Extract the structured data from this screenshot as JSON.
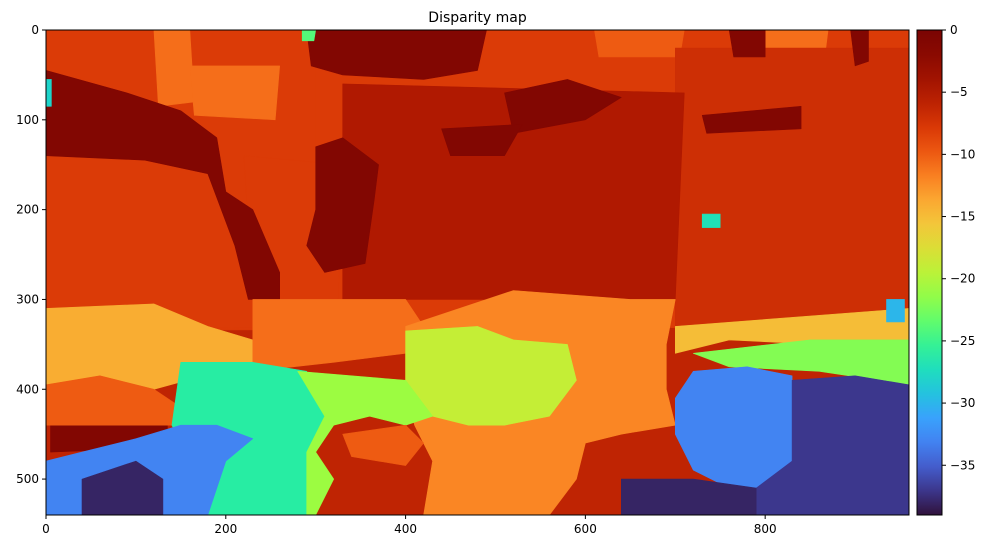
{
  "chart_data": {
    "type": "heatmap",
    "title": "Disparity map",
    "xlabel": "",
    "ylabel": "",
    "x_ticks": [
      0,
      200,
      400,
      600,
      800
    ],
    "y_ticks": [
      0,
      100,
      200,
      300,
      400,
      500
    ],
    "xlim": [
      0,
      960
    ],
    "ylim": [
      540,
      0
    ],
    "colormap": "turbo",
    "colorbar": {
      "range": [
        -39,
        0
      ],
      "ticks": [
        0,
        -5,
        -10,
        -15,
        -20,
        -25,
        -30,
        -35
      ]
    },
    "regions": [
      {
        "name": "background",
        "value": -6,
        "points": [
          [
            0,
            0
          ],
          [
            960,
            0
          ],
          [
            960,
            540
          ],
          [
            0,
            540
          ]
        ]
      },
      {
        "name": "upper-band",
        "value": -8,
        "points": [
          [
            0,
            0
          ],
          [
            960,
            0
          ],
          [
            960,
            330
          ],
          [
            0,
            335
          ]
        ]
      },
      {
        "name": "upper-left-block",
        "value": -8,
        "points": [
          [
            0,
            0
          ],
          [
            300,
            0
          ],
          [
            300,
            330
          ],
          [
            0,
            335
          ]
        ]
      },
      {
        "name": "light-orange-top-a",
        "value": -11,
        "points": [
          [
            120,
            0
          ],
          [
            160,
            0
          ],
          [
            165,
            80
          ],
          [
            125,
            85
          ]
        ]
      },
      {
        "name": "light-orange-top-b",
        "value": -11,
        "points": [
          [
            160,
            40
          ],
          [
            260,
            40
          ],
          [
            255,
            100
          ],
          [
            165,
            95
          ]
        ]
      },
      {
        "name": "light-orange-top-c",
        "value": -10,
        "points": [
          [
            610,
            0
          ],
          [
            710,
            0
          ],
          [
            705,
            30
          ],
          [
            615,
            30
          ]
        ]
      },
      {
        "name": "light-orange-top-d",
        "value": -11,
        "points": [
          [
            770,
            0
          ],
          [
            870,
            0
          ],
          [
            865,
            40
          ],
          [
            775,
            40
          ]
        ]
      },
      {
        "name": "right-upper",
        "value": -7,
        "points": [
          [
            700,
            20
          ],
          [
            960,
            20
          ],
          [
            960,
            330
          ],
          [
            700,
            330
          ]
        ]
      },
      {
        "name": "central-dark-orange",
        "value": -5,
        "points": [
          [
            330,
            60
          ],
          [
            710,
            70
          ],
          [
            700,
            300
          ],
          [
            330,
            300
          ]
        ]
      },
      {
        "name": "mid-orange-left-vert",
        "value": -8,
        "points": [
          [
            220,
            140
          ],
          [
            330,
            150
          ],
          [
            325,
            300
          ],
          [
            230,
            300
          ]
        ]
      },
      {
        "name": "maroon-top-left",
        "value": -1,
        "points": [
          [
            0,
            45
          ],
          [
            90,
            70
          ],
          [
            150,
            90
          ],
          [
            190,
            120
          ],
          [
            200,
            180
          ],
          [
            230,
            200
          ],
          [
            260,
            270
          ],
          [
            260,
            300
          ],
          [
            225,
            300
          ],
          [
            210,
            240
          ],
          [
            180,
            160
          ],
          [
            110,
            145
          ],
          [
            0,
            140
          ]
        ]
      },
      {
        "name": "maroon-top-centre",
        "value": -1,
        "points": [
          [
            290,
            0
          ],
          [
            490,
            0
          ],
          [
            480,
            45
          ],
          [
            420,
            55
          ],
          [
            330,
            50
          ],
          [
            295,
            40
          ]
        ]
      },
      {
        "name": "maroon-centre-body",
        "value": -1,
        "points": [
          [
            300,
            130
          ],
          [
            330,
            120
          ],
          [
            370,
            150
          ],
          [
            365,
            190
          ],
          [
            355,
            260
          ],
          [
            310,
            270
          ],
          [
            290,
            240
          ],
          [
            300,
            200
          ]
        ]
      },
      {
        "name": "maroon-right-a",
        "value": -1,
        "points": [
          [
            510,
            70
          ],
          [
            580,
            55
          ],
          [
            640,
            75
          ],
          [
            600,
            100
          ],
          [
            520,
            115
          ]
        ]
      },
      {
        "name": "maroon-right-b",
        "value": -1,
        "points": [
          [
            440,
            110
          ],
          [
            530,
            105
          ],
          [
            510,
            140
          ],
          [
            450,
            140
          ]
        ]
      },
      {
        "name": "maroon-right-c",
        "value": -1,
        "points": [
          [
            760,
            0
          ],
          [
            800,
            0
          ],
          [
            800,
            30
          ],
          [
            765,
            30
          ]
        ]
      },
      {
        "name": "maroon-right-d",
        "value": -1,
        "points": [
          [
            730,
            95
          ],
          [
            840,
            85
          ],
          [
            840,
            110
          ],
          [
            735,
            115
          ]
        ]
      },
      {
        "name": "maroon-right-e",
        "value": -1,
        "points": [
          [
            895,
            0
          ],
          [
            915,
            0
          ],
          [
            915,
            35
          ],
          [
            900,
            40
          ]
        ]
      },
      {
        "name": "maroon-left-bottom",
        "value": -1,
        "points": [
          [
            5,
            440
          ],
          [
            135,
            440
          ],
          [
            135,
            465
          ],
          [
            5,
            470
          ]
        ]
      },
      {
        "name": "yellow-left",
        "value": -14,
        "points": [
          [
            0,
            310
          ],
          [
            120,
            305
          ],
          [
            180,
            330
          ],
          [
            230,
            345
          ],
          [
            230,
            380
          ],
          [
            175,
            385
          ],
          [
            120,
            400
          ],
          [
            60,
            385
          ],
          [
            0,
            395
          ]
        ]
      },
      {
        "name": "orange-lower-left",
        "value": -10,
        "points": [
          [
            0,
            395
          ],
          [
            60,
            385
          ],
          [
            120,
            400
          ],
          [
            150,
            420
          ],
          [
            140,
            440
          ],
          [
            0,
            440
          ]
        ]
      },
      {
        "name": "orange-centre-lower",
        "value": -11,
        "points": [
          [
            230,
            300
          ],
          [
            400,
            300
          ],
          [
            420,
            330
          ],
          [
            400,
            360
          ],
          [
            320,
            370
          ],
          [
            230,
            380
          ]
        ]
      },
      {
        "name": "light-orange-bottom-centre",
        "value": -12,
        "points": [
          [
            400,
            330
          ],
          [
            520,
            290
          ],
          [
            650,
            300
          ],
          [
            700,
            300
          ],
          [
            690,
            350
          ],
          [
            690,
            400
          ],
          [
            700,
            440
          ],
          [
            640,
            450
          ],
          [
            600,
            460
          ],
          [
            590,
            500
          ],
          [
            560,
            540
          ],
          [
            420,
            540
          ],
          [
            430,
            480
          ],
          [
            410,
            440
          ],
          [
            400,
            400
          ]
        ]
      },
      {
        "name": "green-yellow-centre",
        "value": -19,
        "points": [
          [
            400,
            335
          ],
          [
            480,
            330
          ],
          [
            520,
            345
          ],
          [
            580,
            350
          ],
          [
            590,
            390
          ],
          [
            560,
            430
          ],
          [
            510,
            440
          ],
          [
            470,
            440
          ],
          [
            430,
            430
          ],
          [
            400,
            400
          ]
        ]
      },
      {
        "name": "yellow-strip-right",
        "value": -15,
        "points": [
          [
            700,
            330
          ],
          [
            960,
            310
          ],
          [
            960,
            360
          ],
          [
            860,
            350
          ],
          [
            760,
            345
          ],
          [
            700,
            360
          ]
        ]
      },
      {
        "name": "green-right",
        "value": -22,
        "points": [
          [
            720,
            360
          ],
          [
            850,
            345
          ],
          [
            960,
            345
          ],
          [
            960,
            395
          ],
          [
            860,
            380
          ],
          [
            760,
            375
          ]
        ]
      },
      {
        "name": "cyan-centre-left",
        "value": -26,
        "points": [
          [
            150,
            370
          ],
          [
            230,
            370
          ],
          [
            290,
            380
          ],
          [
            310,
            430
          ],
          [
            290,
            470
          ],
          [
            290,
            540
          ],
          [
            180,
            540
          ],
          [
            160,
            480
          ],
          [
            140,
            440
          ]
        ]
      },
      {
        "name": "green-centre",
        "value": -21,
        "points": [
          [
            280,
            380
          ],
          [
            400,
            390
          ],
          [
            430,
            430
          ],
          [
            400,
            440
          ],
          [
            360,
            430
          ],
          [
            320,
            440
          ],
          [
            300,
            470
          ],
          [
            320,
            500
          ],
          [
            300,
            540
          ],
          [
            290,
            540
          ],
          [
            290,
            470
          ],
          [
            310,
            430
          ]
        ]
      },
      {
        "name": "orange-spot-centre",
        "value": -10,
        "points": [
          [
            330,
            450
          ],
          [
            400,
            440
          ],
          [
            420,
            460
          ],
          [
            400,
            485
          ],
          [
            340,
            475
          ]
        ]
      },
      {
        "name": "blue-bottom-left",
        "value": -33,
        "points": [
          [
            0,
            480
          ],
          [
            40,
            470
          ],
          [
            100,
            455
          ],
          [
            150,
            440
          ],
          [
            190,
            440
          ],
          [
            230,
            455
          ],
          [
            200,
            480
          ],
          [
            180,
            540
          ],
          [
            0,
            540
          ]
        ]
      },
      {
        "name": "navy-bottom-left",
        "value": -38,
        "points": [
          [
            40,
            500
          ],
          [
            100,
            480
          ],
          [
            130,
            500
          ],
          [
            130,
            540
          ],
          [
            40,
            540
          ]
        ]
      },
      {
        "name": "blue-right",
        "value": -33,
        "points": [
          [
            720,
            380
          ],
          [
            780,
            375
          ],
          [
            830,
            385
          ],
          [
            830,
            480
          ],
          [
            800,
            510
          ],
          [
            760,
            510
          ],
          [
            720,
            490
          ],
          [
            700,
            450
          ],
          [
            700,
            410
          ]
        ]
      },
      {
        "name": "navy-right",
        "value": -37,
        "points": [
          [
            830,
            390
          ],
          [
            900,
            385
          ],
          [
            960,
            395
          ],
          [
            960,
            540
          ],
          [
            790,
            540
          ],
          [
            790,
            510
          ],
          [
            830,
            480
          ]
        ]
      },
      {
        "name": "navy-bottom-centre",
        "value": -38,
        "points": [
          [
            640,
            500
          ],
          [
            720,
            500
          ],
          [
            790,
            510
          ],
          [
            790,
            540
          ],
          [
            640,
            540
          ]
        ]
      },
      {
        "name": "cyan-speck-right",
        "value": -27,
        "points": [
          [
            730,
            205
          ],
          [
            750,
            205
          ],
          [
            750,
            220
          ],
          [
            730,
            220
          ]
        ]
      },
      {
        "name": "cyan-speck-left",
        "value": -28,
        "points": [
          [
            0,
            55
          ],
          [
            6,
            55
          ],
          [
            6,
            85
          ],
          [
            0,
            85
          ]
        ]
      },
      {
        "name": "cyan-speck-top",
        "value": -24,
        "points": [
          [
            285,
            0
          ],
          [
            300,
            0
          ],
          [
            298,
            12
          ],
          [
            285,
            12
          ]
        ]
      },
      {
        "name": "cyan-speck-far-right",
        "value": -30,
        "points": [
          [
            935,
            300
          ],
          [
            955,
            300
          ],
          [
            955,
            325
          ],
          [
            935,
            325
          ]
        ]
      }
    ]
  }
}
